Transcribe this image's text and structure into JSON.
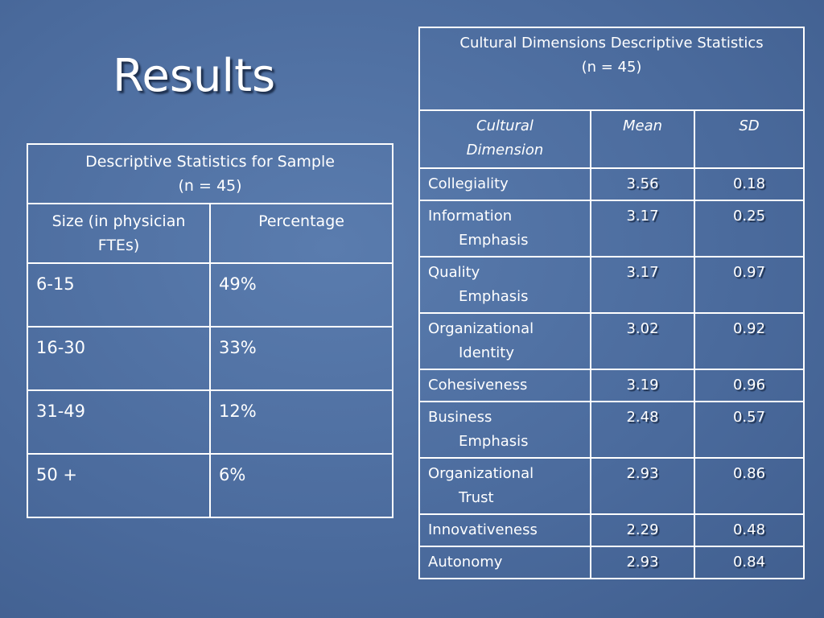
{
  "title": "Results",
  "sample_table": {
    "title": "Descriptive Statistics for Sample",
    "subtitle": "(n = 45)",
    "header": [
      "Size (in physician FTEs)",
      "Percentage"
    ],
    "rows": [
      [
        "6-15",
        "49%"
      ],
      [
        "16-30",
        "33%"
      ],
      [
        "31-49",
        "12%"
      ],
      [
        "50 +",
        "6%"
      ]
    ]
  },
  "culture_table": {
    "title": "Cultural Dimensions Descriptive Statistics",
    "subtitle": "(n = 45)",
    "header": [
      "Cultural Dimension",
      "Mean",
      "SD"
    ],
    "rows": [
      [
        "Collegiality",
        3.56,
        0.18
      ],
      [
        "Information Emphasis",
        3.17,
        0.25
      ],
      [
        "Quality Emphasis",
        3.17,
        0.97
      ],
      [
        "Organizational Identity",
        3.02,
        0.92
      ],
      [
        "Cohesiveness",
        3.19,
        0.96
      ],
      [
        "Business Emphasis",
        2.48,
        0.57
      ],
      [
        "Organizational Trust",
        2.93,
        0.86
      ],
      [
        "Innovativeness",
        2.29,
        0.48
      ],
      [
        "Autonomy",
        2.93,
        0.84
      ]
    ]
  }
}
